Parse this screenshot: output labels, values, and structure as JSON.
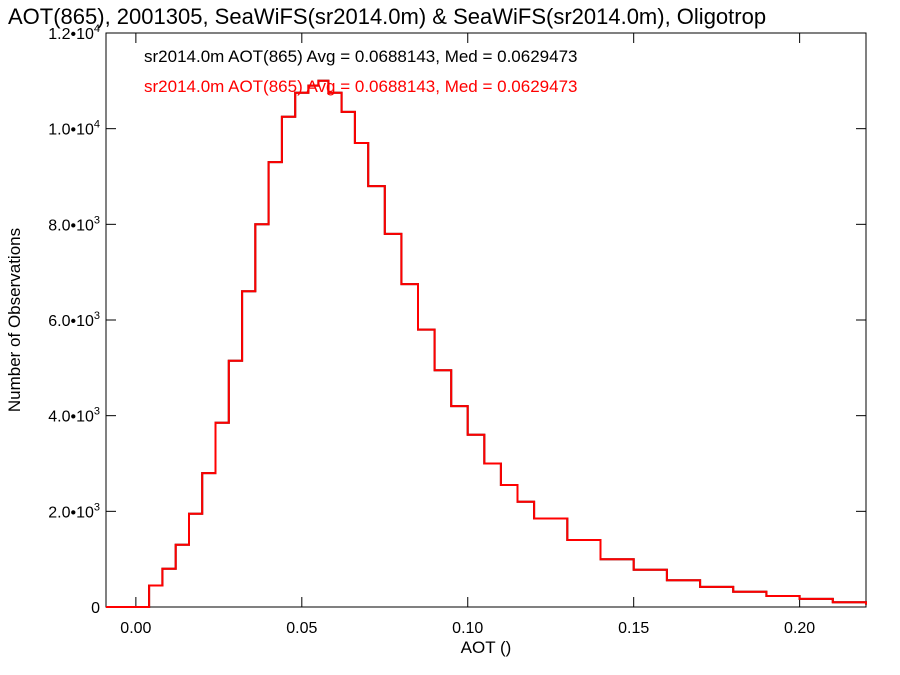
{
  "chart_data": {
    "type": "line",
    "title": "AOT(865), 2001305, SeaWiFS(sr2014.0m) & SeaWiFS(sr2014.0m), Oligotrop",
    "xlabel": "AOT ()",
    "ylabel": "Number of Observations",
    "xlim": [
      -0.009,
      0.22
    ],
    "ylim": [
      0,
      12000
    ],
    "x_ticks": [
      0.0,
      0.05,
      0.1,
      0.15,
      0.2
    ],
    "x_tick_labels": [
      "0.00",
      "0.05",
      "0.10",
      "0.15",
      "0.20"
    ],
    "y_ticks": [
      0,
      2000,
      4000,
      6000,
      8000,
      10000,
      12000
    ],
    "y_tick_labels": [
      {
        "mantissa": "0",
        "exp": ""
      },
      {
        "mantissa": "2.0•10",
        "exp": "3"
      },
      {
        "mantissa": "4.0•10",
        "exp": "3"
      },
      {
        "mantissa": "6.0•10",
        "exp": "3"
      },
      {
        "mantissa": "8.0•10",
        "exp": "3"
      },
      {
        "mantissa": "1.0•10",
        "exp": "4"
      },
      {
        "mantissa": "1.2•10",
        "exp": "4"
      }
    ],
    "annotations": [
      {
        "text": "sr2014.0m AOT(865) Avg = 0.0688143, Med = 0.0629473",
        "color": "#000000"
      },
      {
        "text": "sr2014.0m AOT(865) Avg = 0.0688143, Med = 0.0629473",
        "color": "#ff0000"
      }
    ],
    "series": [
      {
        "color": "#000000",
        "x": [
          -0.009,
          0.0,
          0.004,
          0.008,
          0.012,
          0.016,
          0.02,
          0.024,
          0.028,
          0.032,
          0.036,
          0.04,
          0.044,
          0.048,
          0.052,
          0.055,
          0.058,
          0.062,
          0.066,
          0.07,
          0.075,
          0.08,
          0.085,
          0.09,
          0.095,
          0.1,
          0.105,
          0.11,
          0.115,
          0.12,
          0.13,
          0.14,
          0.15,
          0.16,
          0.17,
          0.18,
          0.19,
          0.2,
          0.21,
          0.22
        ],
        "y": [
          0,
          0,
          450,
          800,
          1300,
          1950,
          2800,
          3850,
          5150,
          6600,
          8000,
          9300,
          10250,
          10750,
          10900,
          11000,
          10750,
          10350,
          9700,
          8800,
          7800,
          6750,
          5800,
          4950,
          4200,
          3600,
          3000,
          2550,
          2200,
          1850,
          1400,
          1000,
          780,
          560,
          420,
          320,
          230,
          170,
          100,
          50
        ]
      },
      {
        "color": "#ff0000",
        "x": [
          -0.009,
          0.0,
          0.004,
          0.008,
          0.012,
          0.016,
          0.02,
          0.024,
          0.028,
          0.032,
          0.036,
          0.04,
          0.044,
          0.048,
          0.052,
          0.055,
          0.058,
          0.062,
          0.066,
          0.07,
          0.075,
          0.08,
          0.085,
          0.09,
          0.095,
          0.1,
          0.105,
          0.11,
          0.115,
          0.12,
          0.13,
          0.14,
          0.15,
          0.16,
          0.17,
          0.18,
          0.19,
          0.2,
          0.21,
          0.22
        ],
        "y": [
          0,
          0,
          450,
          800,
          1300,
          1950,
          2800,
          3850,
          5150,
          6600,
          8000,
          9300,
          10250,
          10750,
          10900,
          11000,
          10750,
          10350,
          9700,
          8800,
          7800,
          6750,
          5800,
          4950,
          4200,
          3600,
          3000,
          2550,
          2200,
          1850,
          1400,
          1000,
          780,
          560,
          420,
          320,
          230,
          170,
          100,
          50
        ]
      }
    ]
  }
}
